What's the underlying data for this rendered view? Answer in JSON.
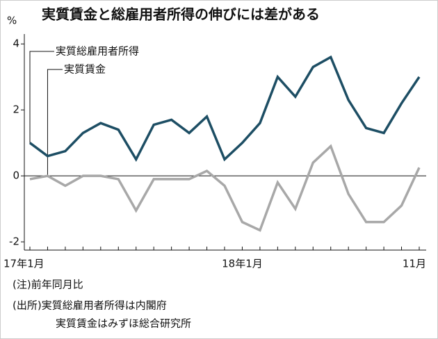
{
  "chart_data": {
    "type": "line",
    "title": "実質賃金と総雇用者所得の伸びには差がある",
    "y_unit": "%",
    "categories": [
      "17年1月",
      null,
      null,
      null,
      null,
      null,
      null,
      null,
      null,
      null,
      null,
      null,
      "18年1月",
      null,
      null,
      null,
      null,
      null,
      null,
      null,
      null,
      null,
      "11月"
    ],
    "series": [
      {
        "name": "実質総雇用者所得",
        "color": "#1d4e64",
        "values": [
          1.0,
          0.6,
          0.75,
          1.3,
          1.6,
          1.4,
          0.5,
          1.55,
          1.7,
          1.3,
          1.8,
          0.5,
          1.0,
          1.6,
          3.0,
          2.4,
          3.3,
          3.6,
          2.3,
          1.45,
          1.3,
          2.2,
          3.0
        ]
      },
      {
        "name": "実質賃金",
        "color": "#a8a8a8",
        "values": [
          -0.1,
          0.0,
          -0.3,
          0.0,
          0.0,
          -0.1,
          -1.05,
          -0.1,
          -0.1,
          -0.1,
          0.15,
          -0.3,
          -1.4,
          -1.65,
          -0.2,
          -1.0,
          0.4,
          0.9,
          -0.55,
          -1.4,
          -1.4,
          -0.9,
          0.25
        ]
      }
    ],
    "ylim": [
      -2.25,
      4.3
    ],
    "yticks": [
      -2,
      0,
      2,
      4
    ],
    "notes": [
      "(注)前年同月比",
      "(出所)実質総雇用者所得は内閣府",
      "実質賃金はみずほ総合研究所"
    ]
  }
}
